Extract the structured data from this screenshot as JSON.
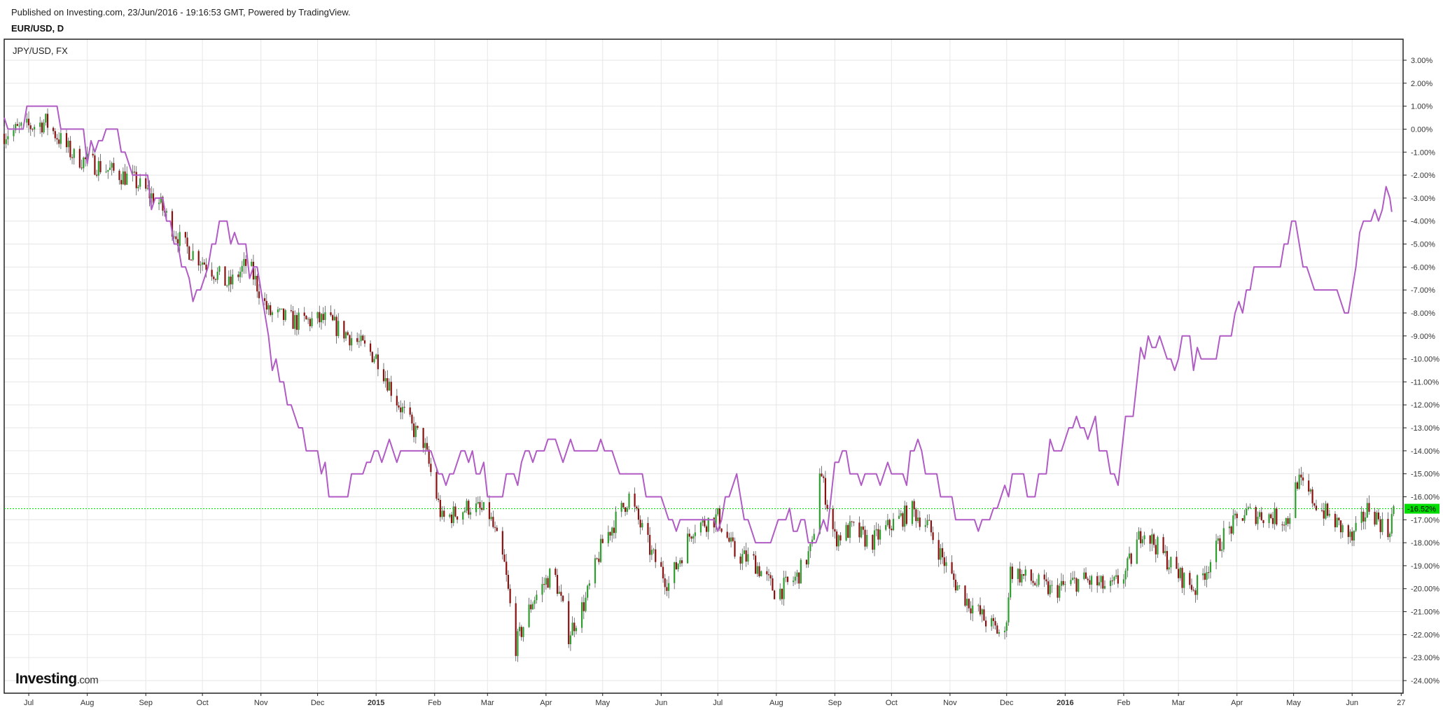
{
  "header": {
    "published": "Published on Investing.com, 23/Jun/2016 - 19:16:53 GMT, Powered by TradingView.",
    "symbol": "EUR/USD, D"
  },
  "legend": {
    "compare_label": "JPY/USD, FX"
  },
  "logo": {
    "brand": "Investing",
    "suffix": ".com"
  },
  "colors": {
    "candle_up": "#2e9e2e",
    "candle_down": "#8b1010",
    "compare_line": "#b05cc4",
    "current_level": "#00dd00",
    "grid": "#e6e6e6",
    "frame": "#222222"
  },
  "chart_data": {
    "type": "line",
    "title": "",
    "y_scale": "percent",
    "ylim": [
      -24.5,
      3.6
    ],
    "y_ticks": [
      "3.00%",
      "2.00%",
      "1.00%",
      "0.00%",
      "-1.00%",
      "-2.00%",
      "-3.00%",
      "-4.00%",
      "-5.00%",
      "-6.00%",
      "-7.00%",
      "-8.00%",
      "-9.00%",
      "-10.00%",
      "-11.00%",
      "-12.00%",
      "-13.00%",
      "-14.00%",
      "-15.00%",
      "-16.00%",
      "-17.00%",
      "-18.00%",
      "-19.00%",
      "-20.00%",
      "-21.00%",
      "-22.00%",
      "-23.00%",
      "-24.00%"
    ],
    "y_tick_values": [
      3,
      2,
      1,
      0,
      -1,
      -2,
      -3,
      -4,
      -5,
      -6,
      -7,
      -8,
      -9,
      -10,
      -11,
      -12,
      -13,
      -14,
      -15,
      -16,
      -17,
      -18,
      -19,
      -20,
      -21,
      -22,
      -23,
      -24
    ],
    "x_ticks": [
      {
        "label": "Jul",
        "date": "2014-07-01"
      },
      {
        "label": "Aug",
        "date": "2014-08-01"
      },
      {
        "label": "Sep",
        "date": "2014-09-01"
      },
      {
        "label": "Oct",
        "date": "2014-10-01"
      },
      {
        "label": "Nov",
        "date": "2014-11-01"
      },
      {
        "label": "Dec",
        "date": "2014-12-01"
      },
      {
        "label": "2015",
        "date": "2015-01-01",
        "bold": true
      },
      {
        "label": "Feb",
        "date": "2015-02-01"
      },
      {
        "label": "Mar",
        "date": "2015-03-01"
      },
      {
        "label": "Apr",
        "date": "2015-04-01"
      },
      {
        "label": "May",
        "date": "2015-05-01"
      },
      {
        "label": "Jun",
        "date": "2015-06-01"
      },
      {
        "label": "Jul",
        "date": "2015-07-01"
      },
      {
        "label": "Aug",
        "date": "2015-08-01"
      },
      {
        "label": "Sep",
        "date": "2015-09-01"
      },
      {
        "label": "Oct",
        "date": "2015-10-01"
      },
      {
        "label": "Nov",
        "date": "2015-11-01"
      },
      {
        "label": "Dec",
        "date": "2015-12-01"
      },
      {
        "label": "2016",
        "date": "2016-01-01",
        "bold": true
      },
      {
        "label": "Feb",
        "date": "2016-02-01"
      },
      {
        "label": "Mar",
        "date": "2016-03-01"
      },
      {
        "label": "Apr",
        "date": "2016-04-01"
      },
      {
        "label": "May",
        "date": "2016-05-01"
      },
      {
        "label": "Jun",
        "date": "2016-06-01"
      },
      {
        "label": "27",
        "date": "2016-06-27"
      }
    ],
    "x_range": [
      "2014-06-18",
      "2016-06-28"
    ],
    "current_value": -16.52,
    "current_label": "-16.52%",
    "series": [
      {
        "name": "EUR/USD",
        "style": "candles",
        "dates": [
          "2014-06-18",
          "2014-07-10",
          "2014-07-25",
          "2014-08-10",
          "2014-08-25",
          "2014-09-08",
          "2014-09-20",
          "2014-10-02",
          "2014-10-15",
          "2014-10-25",
          "2014-11-05",
          "2014-11-20",
          "2014-12-05",
          "2014-12-18",
          "2015-01-02",
          "2015-01-10",
          "2015-01-20",
          "2015-01-26",
          "2015-02-05",
          "2015-02-20",
          "2015-03-02",
          "2015-03-10",
          "2015-03-16",
          "2015-03-25",
          "2015-04-05",
          "2015-04-13",
          "2015-04-22",
          "2015-05-01",
          "2015-05-15",
          "2015-05-27",
          "2015-06-05",
          "2015-06-18",
          "2015-07-01",
          "2015-07-10",
          "2015-07-20",
          "2015-08-01",
          "2015-08-12",
          "2015-08-20",
          "2015-08-24",
          "2015-09-01",
          "2015-09-10",
          "2015-09-20",
          "2015-10-01",
          "2015-10-12",
          "2015-10-20",
          "2015-11-01",
          "2015-11-10",
          "2015-11-20",
          "2015-11-30",
          "2015-12-03",
          "2015-12-15",
          "2015-12-25",
          "2016-01-10",
          "2016-01-25",
          "2016-02-02",
          "2016-02-11",
          "2016-02-20",
          "2016-03-01",
          "2016-03-10",
          "2016-03-25",
          "2016-04-05",
          "2016-04-15",
          "2016-04-28",
          "2016-05-03",
          "2016-05-15",
          "2016-05-28",
          "2016-06-01",
          "2016-06-10",
          "2016-06-20",
          "2016-06-23"
        ],
        "values": [
          -0.2,
          0.3,
          -1.2,
          -1.7,
          -2.2,
          -3.2,
          -5.0,
          -5.8,
          -6.8,
          -5.8,
          -8.0,
          -8.4,
          -8.3,
          -9.0,
          -10.0,
          -11.5,
          -13.0,
          -13.6,
          -17.0,
          -16.4,
          -16.8,
          -19.0,
          -22.5,
          -20.5,
          -19.2,
          -22.0,
          -20.5,
          -18.0,
          -16.0,
          -18.5,
          -19.8,
          -17.3,
          -16.9,
          -18.5,
          -18.8,
          -20.2,
          -19.5,
          -18.2,
          -14.8,
          -17.8,
          -17.4,
          -18.0,
          -17.2,
          -16.6,
          -17.2,
          -19.4,
          -20.5,
          -21.4,
          -22.1,
          -19.2,
          -19.7,
          -20.1,
          -19.6,
          -20.0,
          -19.3,
          -17.4,
          -18.3,
          -19.4,
          -20.0,
          -17.7,
          -16.7,
          -16.8,
          -17.0,
          -15.3,
          -16.5,
          -17.5,
          -17.9,
          -16.4,
          -17.6,
          -16.5
        ]
      },
      {
        "name": "JPY/USD",
        "style": "line",
        "dates": [
          "2014-06-18",
          "2014-07-10",
          "2014-07-25",
          "2014-08-05",
          "2014-08-15",
          "2014-08-25",
          "2014-09-10",
          "2014-09-20",
          "2014-09-30",
          "2014-10-10",
          "2014-10-20",
          "2014-10-30",
          "2014-11-05",
          "2014-11-15",
          "2014-12-01",
          "2014-12-10",
          "2014-12-20",
          "2014-12-28",
          "2015-01-10",
          "2015-01-25",
          "2015-02-05",
          "2015-02-20",
          "2015-03-05",
          "2015-03-20",
          "2015-04-05",
          "2015-04-20",
          "2015-05-05",
          "2015-05-20",
          "2015-06-01",
          "2015-06-10",
          "2015-06-20",
          "2015-07-01",
          "2015-07-10",
          "2015-07-20",
          "2015-08-01",
          "2015-08-15",
          "2015-08-24",
          "2015-09-05",
          "2015-09-15",
          "2015-10-01",
          "2015-10-15",
          "2015-11-01",
          "2015-11-10",
          "2015-11-20",
          "2015-12-05",
          "2015-12-15",
          "2016-01-01",
          "2016-01-15",
          "2016-01-29",
          "2016-02-05",
          "2016-02-15",
          "2016-02-25",
          "2016-03-05",
          "2016-03-15",
          "2016-03-28",
          "2016-04-05",
          "2016-04-15",
          "2016-04-22",
          "2016-05-01",
          "2016-05-10",
          "2016-05-20",
          "2016-05-30",
          "2016-06-05",
          "2016-06-15",
          "2016-06-20",
          "2016-06-22"
        ],
        "values": [
          0.0,
          1.0,
          0.0,
          -1.0,
          0.0,
          -2.0,
          -3.0,
          -6.0,
          -7.0,
          -4.0,
          -5.0,
          -6.0,
          -9.5,
          -12.0,
          -14.5,
          -16.5,
          -15.2,
          -14.2,
          -14.2,
          -14.2,
          -14.8,
          -14.2,
          -16.2,
          -14.2,
          -14.2,
          -14.2,
          -14.2,
          -15.2,
          -16.2,
          -17.4,
          -17.0,
          -17.4,
          -15.2,
          -18.0,
          -17.4,
          -17.4,
          -17.8,
          -14.2,
          -15.2,
          -15.2,
          -14.2,
          -16.2,
          -17.4,
          -17.4,
          -15.2,
          -15.8,
          -13.2,
          -13.2,
          -15.2,
          -12.0,
          -9.0,
          -10.0,
          -9.2,
          -10.0,
          -9.0,
          -7.5,
          -5.5,
          -6.5,
          -4.0,
          -7.0,
          -7.2,
          -7.8,
          -4.5,
          -4.2,
          -2.2,
          -3.6
        ]
      }
    ]
  }
}
